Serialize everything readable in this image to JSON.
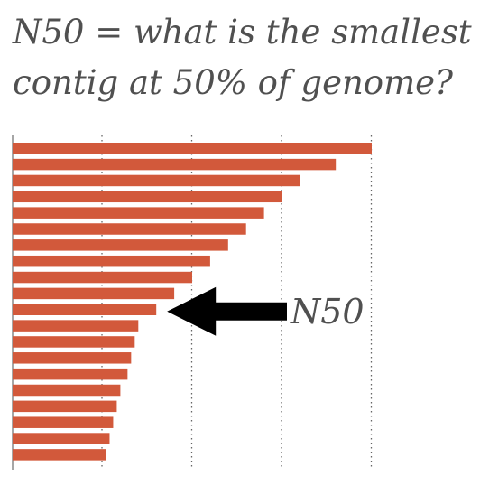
{
  "title": {
    "line1": "N50 = what is the smallest",
    "line2": "contig at 50% of genome?"
  },
  "chart_data": {
    "type": "bar",
    "orientation": "horizontal",
    "sort": "descending",
    "title": "N50 = what is the smallest contig at 50% of genome?",
    "xlim": [
      0,
      100
    ],
    "grid": true,
    "gridlines_x": [
      25,
      50,
      75,
      100
    ],
    "values": [
      100,
      90,
      80,
      75,
      70,
      65,
      60,
      55,
      50,
      45,
      40,
      35,
      34,
      33,
      32,
      30,
      29,
      28,
      27,
      26
    ],
    "annotations": [
      {
        "text": "N50",
        "target_index": 10,
        "style": "arrow"
      }
    ],
    "colors": {
      "bar": "#d2593b",
      "arrow": "#000000",
      "text": "#505050"
    }
  }
}
